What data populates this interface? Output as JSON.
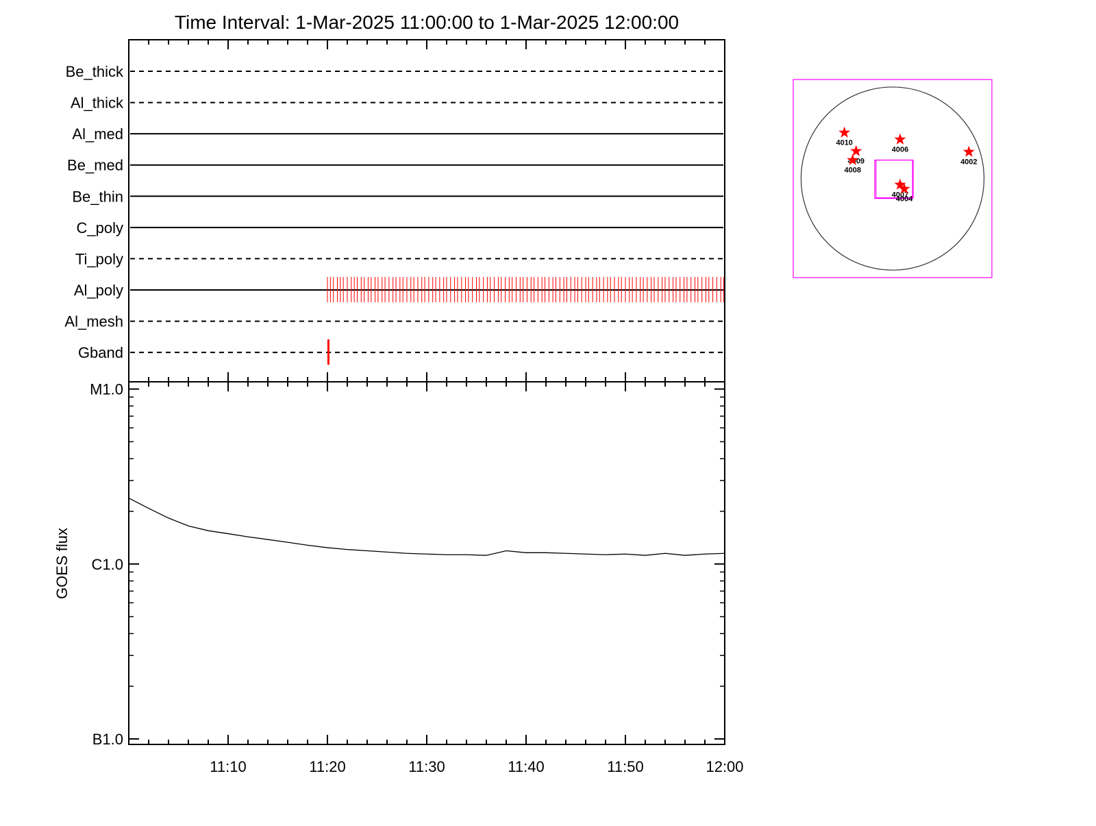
{
  "chart_data": [
    {
      "type": "timeline",
      "title": "Time Interval:  1-Mar-2025 11:00:00 to  1-Mar-2025 12:00:00",
      "categories": [
        "Be_thick",
        "Al_thick",
        "Al_med",
        "Be_med",
        "Be_thin",
        "C_poly",
        "Ti_poly",
        "Al_poly",
        "Al_mesh",
        "Gband"
      ],
      "line_styles": [
        "dashed",
        "dashed",
        "solid",
        "solid",
        "solid",
        "solid",
        "dashed",
        "solid",
        "dashed",
        "dashed"
      ],
      "events": [
        [],
        [],
        [],
        [],
        [],
        [],
        [],
        [
          20.0,
          20.3,
          20.6,
          21.0,
          21.3,
          21.6,
          22.0,
          22.4,
          22.7,
          23.0,
          23.4,
          23.7,
          24.1,
          24.4,
          24.8,
          25.1,
          25.5,
          25.8,
          26.2,
          26.6,
          26.9,
          27.3,
          27.6,
          28.0,
          28.4,
          28.7,
          29.1,
          29.5,
          29.8,
          30.2,
          30.6,
          30.9,
          31.3,
          31.7,
          32.0,
          32.4,
          32.8,
          33.1,
          33.5,
          33.9,
          34.2,
          34.6,
          35.0,
          35.3,
          35.7,
          36.1,
          36.4,
          36.8,
          37.2,
          37.5,
          37.9,
          38.3,
          38.6,
          39.0,
          39.4,
          39.7,
          40.1,
          40.5,
          40.8,
          41.2,
          41.6,
          41.9,
          42.3,
          42.7,
          43.0,
          43.4,
          43.8,
          44.1,
          44.5,
          44.9,
          45.2,
          45.6,
          46.0,
          46.3,
          46.7,
          47.1,
          47.4,
          47.8,
          48.2,
          48.5,
          48.9,
          49.3,
          49.6,
          50.0,
          50.4,
          50.7,
          51.1,
          51.5,
          51.8,
          52.2,
          52.6,
          52.9,
          53.3,
          53.7,
          54.0,
          54.4,
          54.8,
          55.1,
          55.5,
          55.9,
          56.2,
          56.6,
          57.0,
          57.3,
          57.7,
          58.1,
          58.4,
          58.8,
          59.2,
          59.6,
          59.9
        ],
        [],
        [
          20.1
        ]
      ],
      "event_color": "#ff0000",
      "xlim": [
        0,
        60
      ],
      "xticks": [
        10,
        20,
        30,
        40,
        50
      ],
      "xminor_step": 2
    },
    {
      "type": "line",
      "ylabel": "GOES flux",
      "xlim": [
        0,
        60
      ],
      "xticks": [
        {
          "value": 10,
          "label": "11:10"
        },
        {
          "value": 20,
          "label": "11:20"
        },
        {
          "value": 30,
          "label": "11:30"
        },
        {
          "value": 40,
          "label": "11:40"
        },
        {
          "value": 50,
          "label": "11:50"
        },
        {
          "value": 60,
          "label": "12:00"
        }
      ],
      "xminor_step": 2,
      "ylog": true,
      "ylim": [
        9.3e-08,
        1.1e-05
      ],
      "yticks": [
        {
          "value": 1e-05,
          "label": "M1.0"
        },
        {
          "value": 1e-06,
          "label": "C1.0"
        },
        {
          "value": 1e-07,
          "label": "B1.0"
        }
      ],
      "x": [
        0,
        2,
        4,
        6,
        8,
        10,
        12,
        14,
        16,
        18,
        20,
        22,
        24,
        26,
        28,
        30,
        32,
        34,
        36,
        38,
        40,
        42,
        44,
        46,
        48,
        50,
        52,
        54,
        56,
        58,
        60
      ],
      "series": [
        {
          "color": "#000000",
          "values": [
            2.38e-06,
            2.08e-06,
            1.83e-06,
            1.65e-06,
            1.55e-06,
            1.49e-06,
            1.43e-06,
            1.38e-06,
            1.33e-06,
            1.28e-06,
            1.24e-06,
            1.21e-06,
            1.19e-06,
            1.17e-06,
            1.15e-06,
            1.14e-06,
            1.13e-06,
            1.13e-06,
            1.12e-06,
            1.19e-06,
            1.16e-06,
            1.16e-06,
            1.15e-06,
            1.14e-06,
            1.13e-06,
            1.14e-06,
            1.12e-06,
            1.15e-06,
            1.12e-06,
            1.14e-06,
            1.15e-06
          ]
        }
      ]
    },
    {
      "type": "scatter",
      "xlim": [
        -1050,
        1050
      ],
      "ylim": [
        -1050,
        1050
      ],
      "limb_radius": 967,
      "frame_color": "#ff00ff",
      "fov": [
        {
          "xlim": [
            -189,
            211
          ],
          "ylim": [
            -211,
            196
          ]
        },
        {
          "xlim": [
            -175,
            218
          ],
          "ylim": [
            -204,
            196
          ]
        }
      ],
      "color": "#ff0000",
      "labels": [
        "4010",
        "4006",
        "4009",
        "4008",
        "4002",
        "4007",
        "4004"
      ],
      "x": [
        -509,
        80,
        -385,
        -422,
        807,
        80,
        124
      ],
      "y": [
        487,
        414,
        291,
        196,
        283,
        -65,
        -109
      ]
    }
  ]
}
